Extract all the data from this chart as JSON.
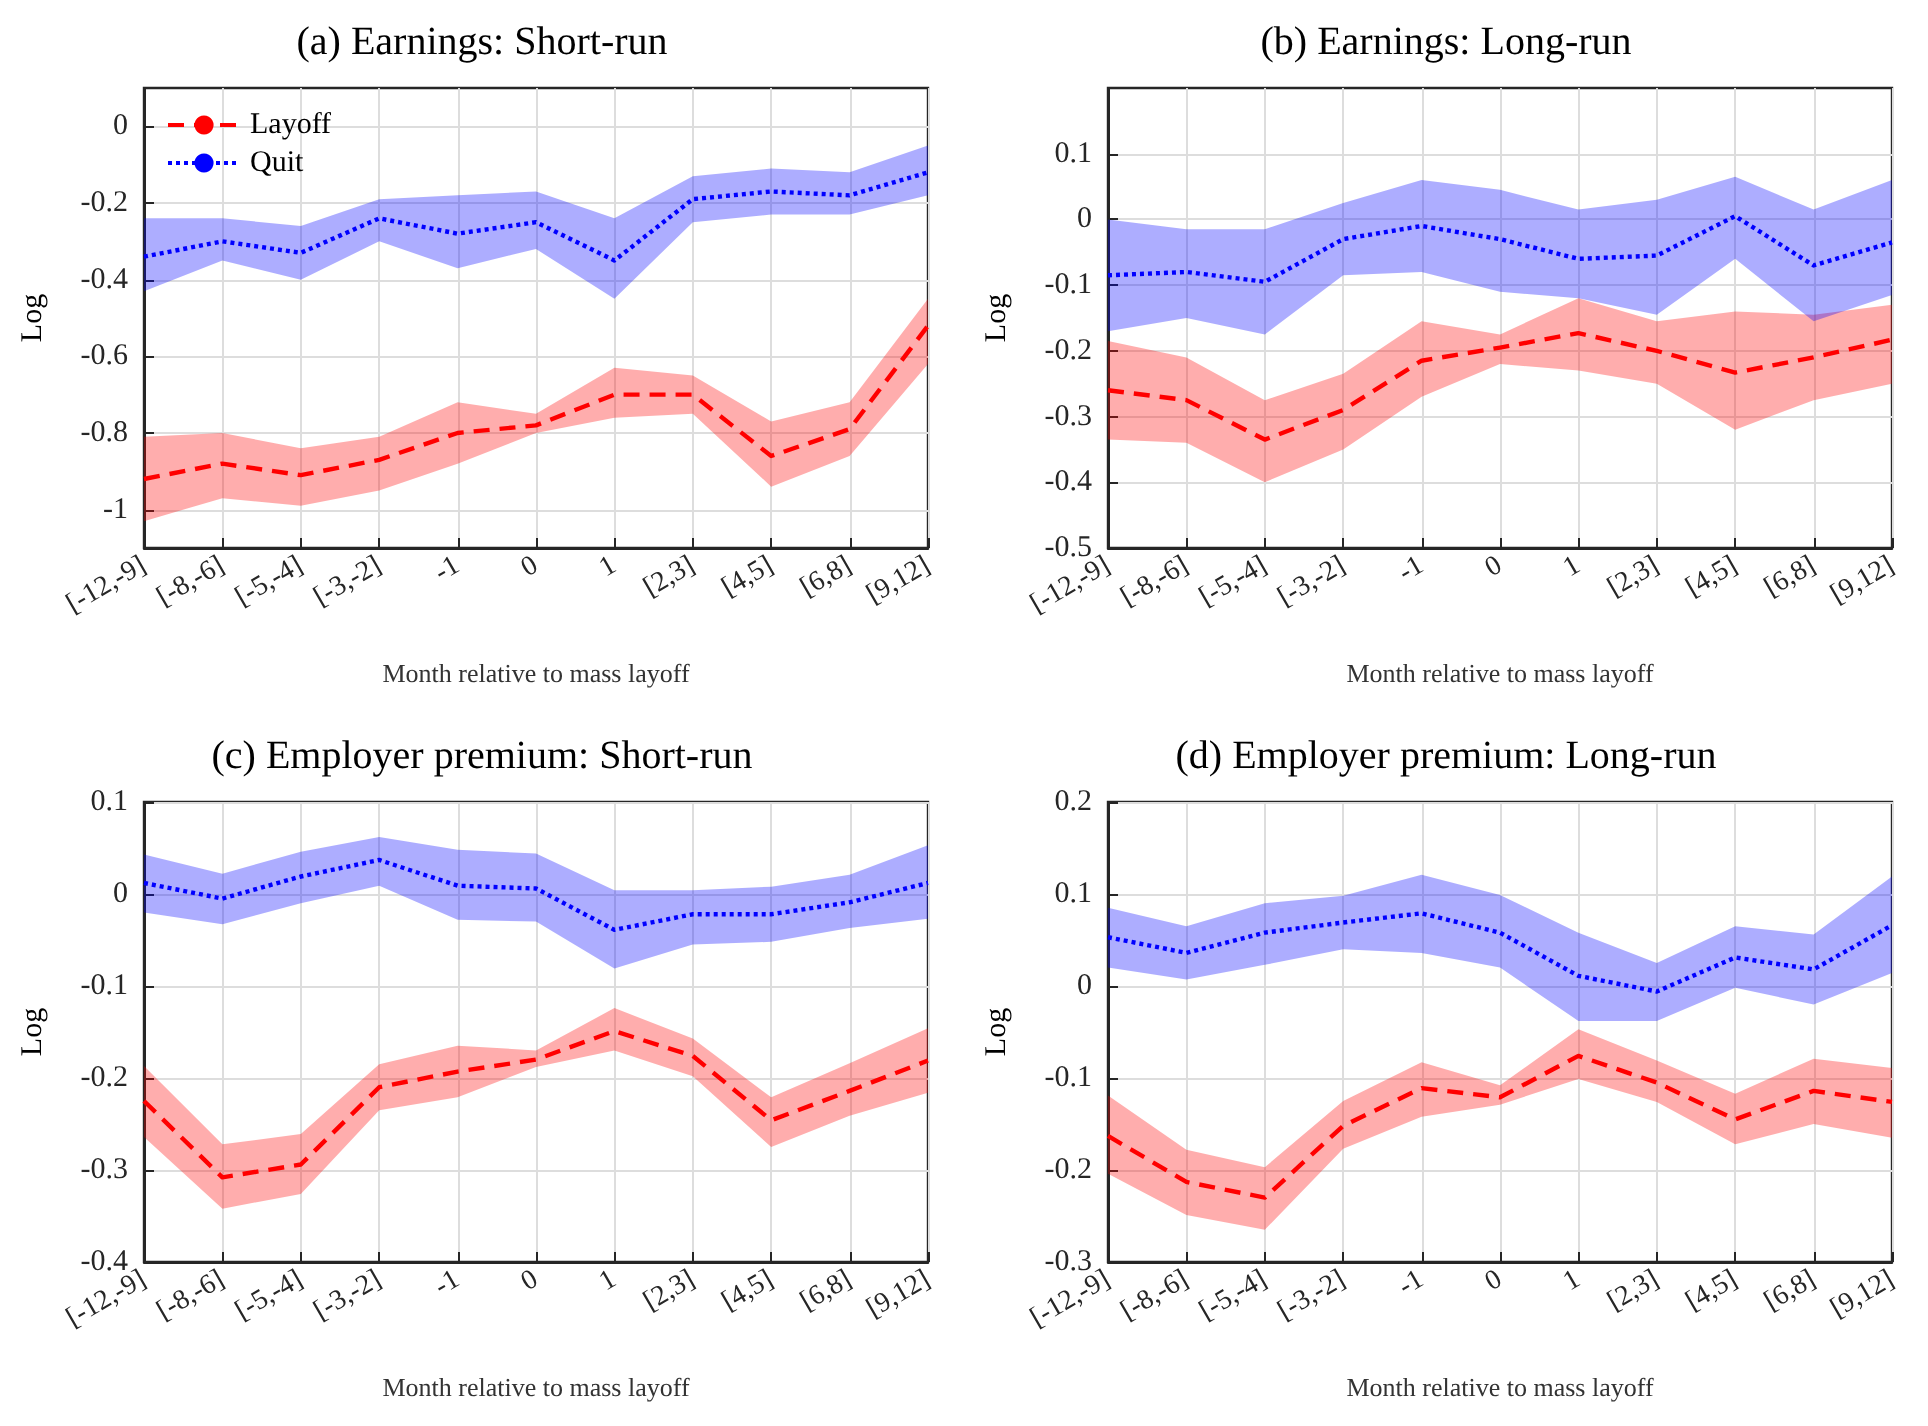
{
  "chart_data": [
    {
      "type": "line",
      "title": "(a) Earnings: Short-run",
      "xlabel": "Month relative to mass layoff",
      "ylabel": "Log",
      "categories": [
        "[-12,-9]",
        "[-8,-6]",
        "[-5,-4]",
        "[-3,-2]",
        "-1",
        "0",
        "1",
        "[2,3]",
        "[4,5]",
        "[6,8]",
        "[9,12]"
      ],
      "ylim": [
        -1.1,
        0.1
      ],
      "yticks": [
        -1,
        -0.8,
        -0.6,
        -0.4,
        -0.2,
        0
      ],
      "grid": true,
      "legend": "top left",
      "series": [
        {
          "name": "Layoff",
          "color": "#ff0000",
          "line_style": "dashed",
          "values": [
            -0.92,
            -0.88,
            -0.91,
            -0.87,
            -0.8,
            -0.78,
            -0.7,
            -0.7,
            -0.86,
            -0.79,
            -0.52
          ],
          "lower": [
            -1.03,
            -0.97,
            -0.99,
            -0.95,
            -0.88,
            -0.8,
            -0.76,
            -0.75,
            -0.94,
            -0.86,
            -0.62
          ],
          "upper": [
            -0.81,
            -0.8,
            -0.84,
            -0.81,
            -0.72,
            -0.75,
            -0.63,
            -0.65,
            -0.77,
            -0.72,
            -0.45
          ]
        },
        {
          "name": "Quit",
          "color": "#0000ff",
          "line_style": "dotted",
          "values": [
            -0.34,
            -0.3,
            -0.33,
            -0.24,
            -0.28,
            -0.25,
            -0.35,
            -0.19,
            -0.17,
            -0.18,
            -0.12
          ],
          "lower": [
            -0.43,
            -0.35,
            -0.4,
            -0.3,
            -0.37,
            -0.32,
            -0.45,
            -0.25,
            -0.23,
            -0.23,
            -0.18
          ],
          "upper": [
            -0.24,
            -0.24,
            -0.26,
            -0.19,
            -0.18,
            -0.17,
            -0.24,
            -0.13,
            -0.11,
            -0.12,
            -0.05
          ]
        }
      ]
    },
    {
      "type": "line",
      "title": "(b) Earnings: Long-run",
      "xlabel": "Month relative to mass layoff",
      "ylabel": "Log",
      "categories": [
        "[-12,-9]",
        "[-8,-6]",
        "[-5,-4]",
        "[-3,-2]",
        "-1",
        "0",
        "1",
        "[2,3]",
        "[4,5]",
        "[6,8]",
        "[9,12]"
      ],
      "ylim": [
        -0.5,
        0.2
      ],
      "yticks": [
        -0.5,
        -0.4,
        -0.3,
        -0.2,
        -0.1,
        0,
        0.1
      ],
      "grid": true,
      "series": [
        {
          "color": "#ff0000",
          "line_style": "dashed",
          "values": [
            -0.26,
            -0.275,
            -0.335,
            -0.29,
            -0.215,
            -0.195,
            -0.173,
            -0.2,
            -0.233,
            -0.21,
            -0.183
          ],
          "lower": [
            -0.335,
            -0.34,
            -0.4,
            -0.35,
            -0.27,
            -0.22,
            -0.23,
            -0.25,
            -0.32,
            -0.275,
            -0.25
          ],
          "upper": [
            -0.185,
            -0.21,
            -0.275,
            -0.235,
            -0.155,
            -0.175,
            -0.12,
            -0.155,
            -0.14,
            -0.145,
            -0.13
          ]
        },
        {
          "color": "#0000ff",
          "line_style": "dotted",
          "values": [
            -0.085,
            -0.08,
            -0.095,
            -0.03,
            -0.01,
            -0.03,
            -0.06,
            -0.055,
            0.005,
            -0.07,
            -0.035
          ],
          "lower": [
            -0.17,
            -0.15,
            -0.175,
            -0.085,
            -0.08,
            -0.11,
            -0.12,
            -0.145,
            -0.06,
            -0.155,
            -0.115
          ],
          "upper": [
            0,
            -0.015,
            -0.015,
            0.025,
            0.06,
            0.045,
            0.015,
            0.03,
            0.065,
            0.015,
            0.06
          ]
        }
      ]
    },
    {
      "type": "line",
      "title": "(c) Employer premium: Short-run",
      "xlabel": "Month relative to mass layoff",
      "ylabel": "Log",
      "categories": [
        "[-12,-9]",
        "[-8,-6]",
        "[-5,-4]",
        "[-3,-2]",
        "-1",
        "0",
        "1",
        "[2,3]",
        "[4,5]",
        "[6,8]",
        "[9,12]"
      ],
      "ylim": [
        -0.4,
        0.1
      ],
      "yticks": [
        -0.4,
        -0.3,
        -0.2,
        -0.1,
        0,
        0.1
      ],
      "grid": true,
      "series": [
        {
          "color": "#ff0000",
          "line_style": "dashed",
          "values": [
            -0.225,
            -0.308,
            -0.294,
            -0.21,
            -0.193,
            -0.18,
            -0.149,
            -0.176,
            -0.246,
            -0.214,
            -0.181
          ],
          "lower": [
            -0.264,
            -0.342,
            -0.326,
            -0.235,
            -0.221,
            -0.188,
            -0.17,
            -0.198,
            -0.275,
            -0.241,
            -0.216
          ],
          "upper": [
            -0.187,
            -0.272,
            -0.261,
            -0.185,
            -0.165,
            -0.17,
            -0.124,
            -0.157,
            -0.221,
            -0.184,
            -0.146
          ]
        },
        {
          "color": "#0000ff",
          "line_style": "dotted",
          "values": [
            0.012,
            -0.005,
            0.019,
            0.037,
            0.009,
            0.006,
            -0.039,
            -0.022,
            -0.022,
            -0.009,
            0.012
          ],
          "lower": [
            -0.02,
            -0.033,
            -0.01,
            0.009,
            -0.028,
            -0.03,
            -0.081,
            -0.055,
            -0.052,
            -0.037,
            -0.027
          ],
          "upper": [
            0.043,
            0.022,
            0.046,
            0.062,
            0.048,
            0.044,
            0.004,
            0.004,
            0.008,
            0.021,
            0.053
          ]
        }
      ]
    },
    {
      "type": "line",
      "title": "(d) Employer premium: Long-run",
      "xlabel": "Month relative to mass layoff",
      "ylabel": "Log",
      "categories": [
        "[-12,-9]",
        "[-8,-6]",
        "[-5,-4]",
        "[-3,-2]",
        "-1",
        "0",
        "1",
        "[2,3]",
        "[4,5]",
        "[6,8]",
        "[9,12]"
      ],
      "ylim": [
        -0.3,
        0.2
      ],
      "yticks": [
        -0.3,
        -0.2,
        -0.1,
        0,
        0.1,
        0.2
      ],
      "grid": true,
      "series": [
        {
          "color": "#ff0000",
          "line_style": "dashed",
          "values": [
            -0.163,
            -0.213,
            -0.23,
            -0.152,
            -0.111,
            -0.121,
            -0.076,
            -0.105,
            -0.145,
            -0.114,
            -0.126
          ],
          "lower": [
            -0.204,
            -0.249,
            -0.265,
            -0.177,
            -0.142,
            -0.129,
            -0.101,
            -0.126,
            -0.172,
            -0.15,
            -0.165
          ],
          "upper": [
            -0.119,
            -0.178,
            -0.197,
            -0.125,
            -0.083,
            -0.108,
            -0.047,
            -0.081,
            -0.117,
            -0.079,
            -0.089
          ]
        },
        {
          "color": "#0000ff",
          "line_style": "dotted",
          "values": [
            0.053,
            0.036,
            0.058,
            0.069,
            0.079,
            0.058,
            0.011,
            -0.006,
            0.031,
            0.018,
            0.066
          ],
          "lower": [
            0.02,
            0.007,
            0.023,
            0.04,
            0.036,
            0.02,
            -0.038,
            -0.038,
            -0.002,
            -0.02,
            0.014
          ],
          "upper": [
            0.085,
            0.065,
            0.09,
            0.098,
            0.121,
            0.099,
            0.058,
            0.025,
            0.065,
            0.056,
            0.119
          ]
        }
      ]
    }
  ]
}
